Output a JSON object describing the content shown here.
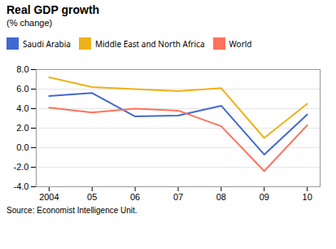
{
  "chart_data": {
    "type": "line",
    "title": "Real GDP growth",
    "subtitle": "(% change)",
    "source": "Source: Economist Intelligence Unit.",
    "x": [
      2004,
      2005,
      2006,
      2007,
      2008,
      2009,
      2010
    ],
    "series": [
      {
        "name": "Saudi Arabia",
        "values": [
          5.3,
          5.6,
          3.2,
          3.3,
          4.3,
          -0.7,
          3.4
        ]
      },
      {
        "name": "Middle East and North Africa",
        "values": [
          7.2,
          6.2,
          6.0,
          5.8,
          6.1,
          1.0,
          4.5
        ]
      },
      {
        "name": "World",
        "values": [
          4.1,
          3.6,
          4.0,
          3.8,
          2.2,
          -2.4,
          2.3
        ]
      }
    ],
    "xlim": [
      2003.7,
      2010.3
    ],
    "xticks": [
      2004,
      {
        "value": 2005,
        "label": "05"
      },
      {
        "value": 2006,
        "label": "06"
      },
      {
        "value": 2007,
        "label": "07"
      },
      {
        "value": 2008,
        "label": "08"
      },
      {
        "value": 2009,
        "label": "09"
      },
      {
        "value": 2010,
        "label": "10"
      }
    ],
    "ylim": [
      -4.0,
      8.0
    ],
    "yticks": [
      {
        "value": -4,
        "label": "-4.0"
      },
      {
        "value": -2,
        "label": "-2.0"
      },
      {
        "value": 0,
        "label": "0.0"
      },
      {
        "value": 2,
        "label": "2.0"
      },
      {
        "value": 4,
        "label": "4.0"
      },
      {
        "value": 6,
        "label": "6.0"
      },
      {
        "value": 8,
        "label": "8.0"
      }
    ],
    "grid": true,
    "legend": "top"
  }
}
